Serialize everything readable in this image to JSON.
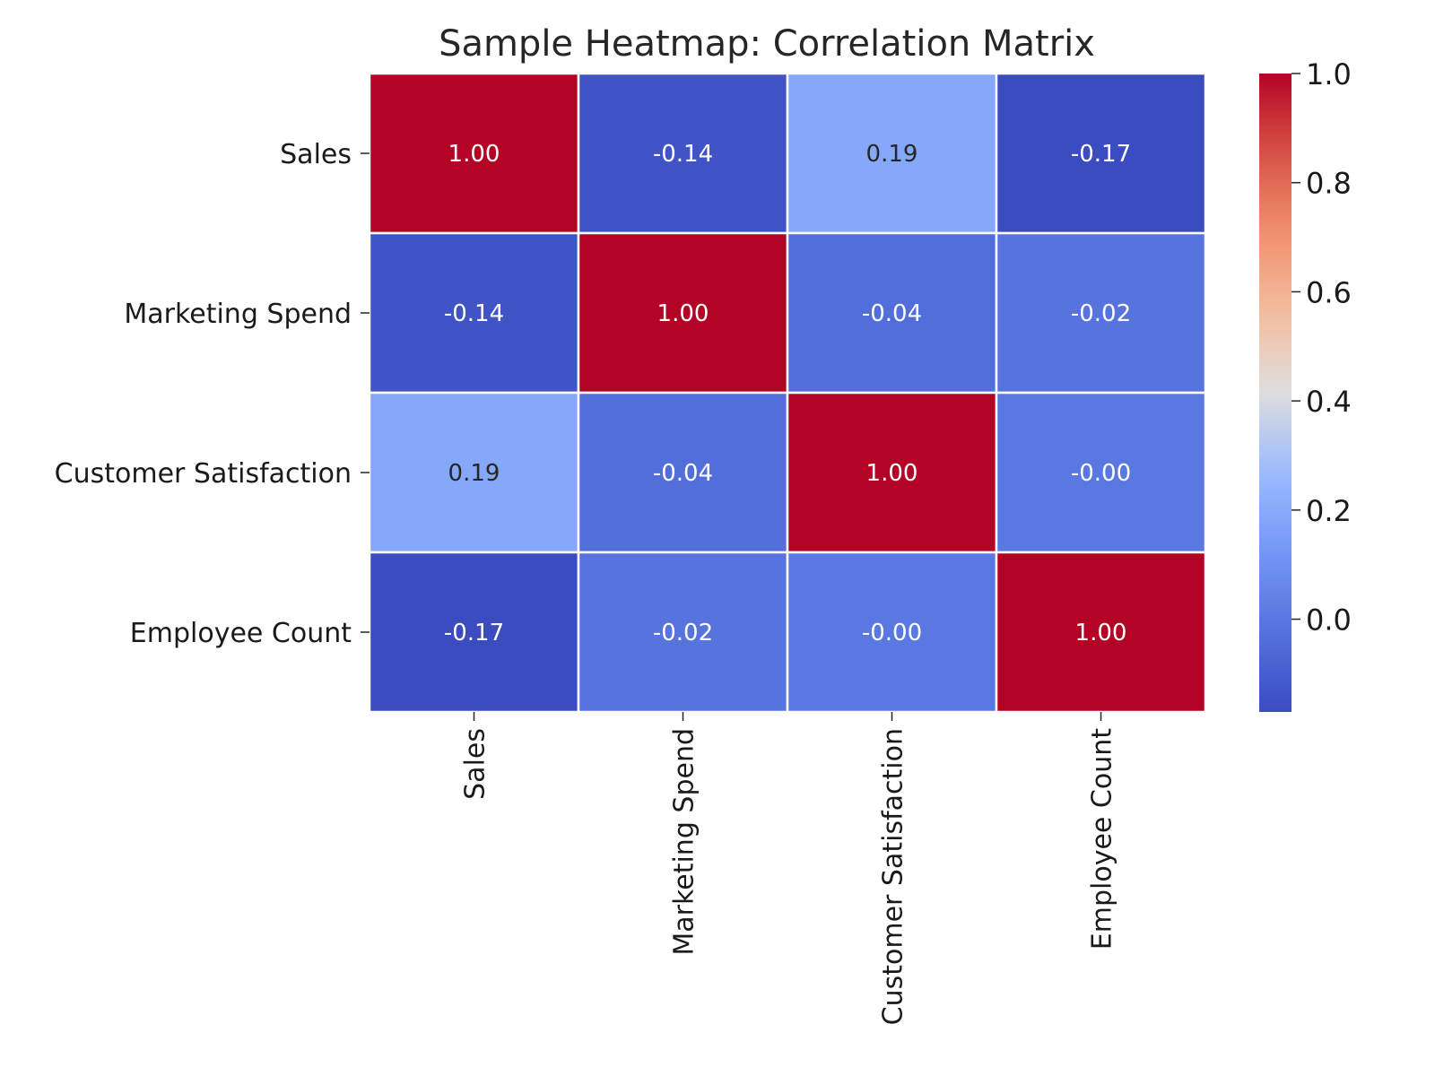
{
  "chart_data": {
    "type": "heatmap",
    "title": "Sample Heatmap: Correlation Matrix",
    "xlabel": "",
    "ylabel": "",
    "row_labels": [
      "Sales",
      "Marketing Spend",
      "Customer Satisfaction",
      "Employee Count"
    ],
    "col_labels": [
      "Sales",
      "Marketing Spend",
      "Customer Satisfaction",
      "Employee Count"
    ],
    "values": [
      [
        1.0,
        -0.14,
        0.19,
        -0.17
      ],
      [
        -0.14,
        1.0,
        -0.04,
        -0.02
      ],
      [
        0.19,
        -0.04,
        1.0,
        -0.0
      ],
      [
        -0.17,
        -0.02,
        -0.0,
        1.0
      ]
    ],
    "value_labels": [
      [
        "1.00",
        "-0.14",
        "0.19",
        "-0.17"
      ],
      [
        "-0.14",
        "1.00",
        "-0.04",
        "-0.02"
      ],
      [
        "0.19",
        "-0.04",
        "1.00",
        "-0.00"
      ],
      [
        "-0.17",
        "-0.02",
        "-0.00",
        "1.00"
      ]
    ],
    "colormap": "coolwarm",
    "color_range": [
      -0.17,
      1.0
    ],
    "colorbar_ticks": [
      "0.0",
      "0.2",
      "0.4",
      "0.6",
      "0.8",
      "1.0"
    ],
    "colorbar_tick_values": [
      0.0,
      0.2,
      0.4,
      0.6,
      0.8,
      1.0
    ],
    "annotated": true,
    "legend": "colorbar-right",
    "grid": false
  }
}
